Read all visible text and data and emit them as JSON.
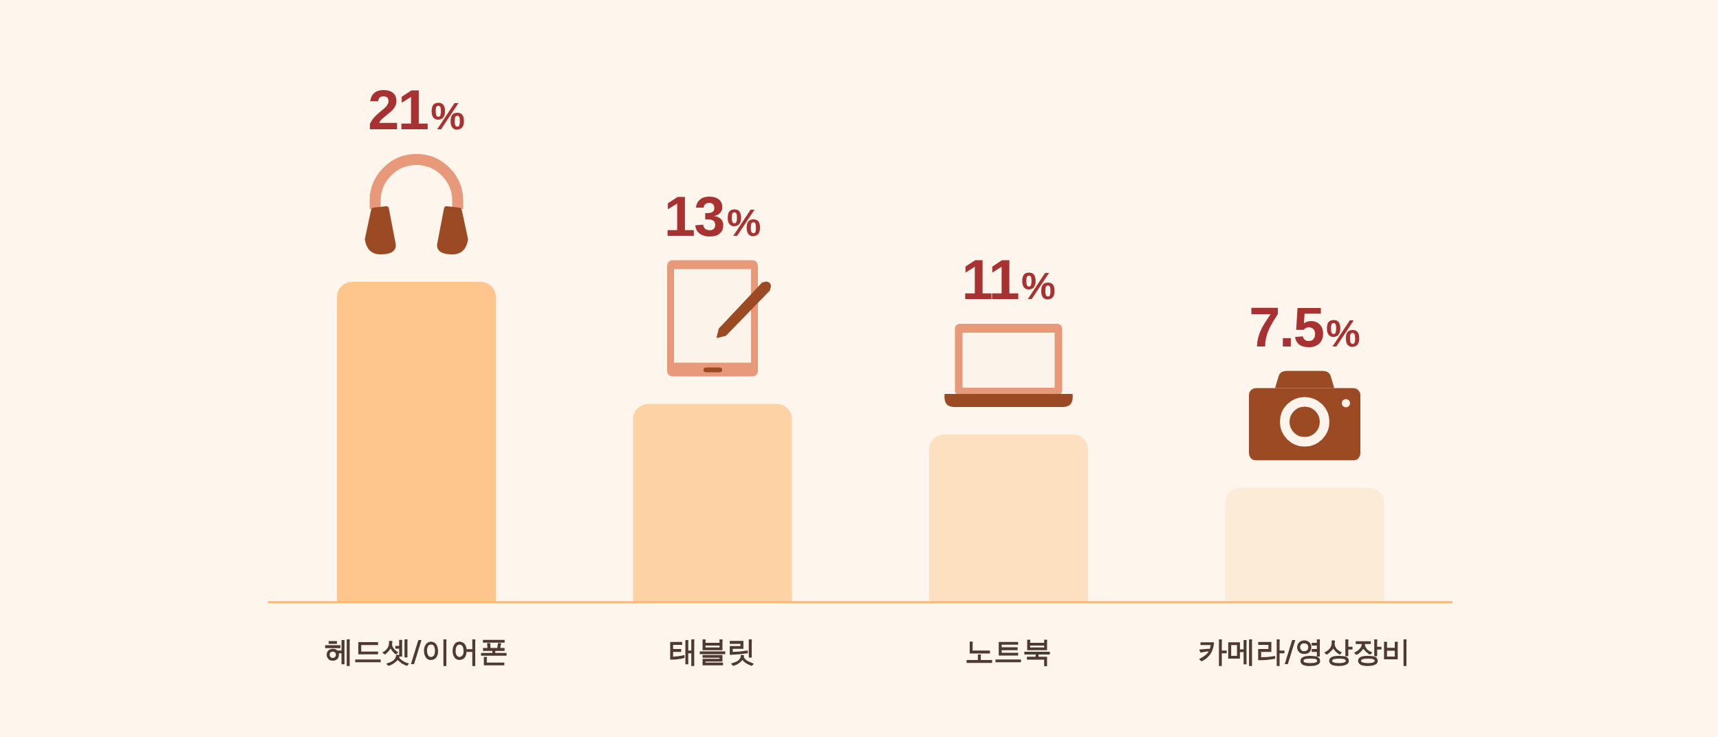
{
  "chart_data": {
    "type": "bar",
    "categories": [
      "헤드셋/이어폰",
      "태블릿",
      "노트북",
      "카메라/영상장비"
    ],
    "values": [
      21,
      13,
      11,
      7.5
    ],
    "colors": [
      "#fec58c",
      "#fdd2a5",
      "#fde0bf",
      "#fcebd7"
    ],
    "value_labels": [
      "21%",
      "13%",
      "11%",
      "7.5%"
    ]
  }
}
